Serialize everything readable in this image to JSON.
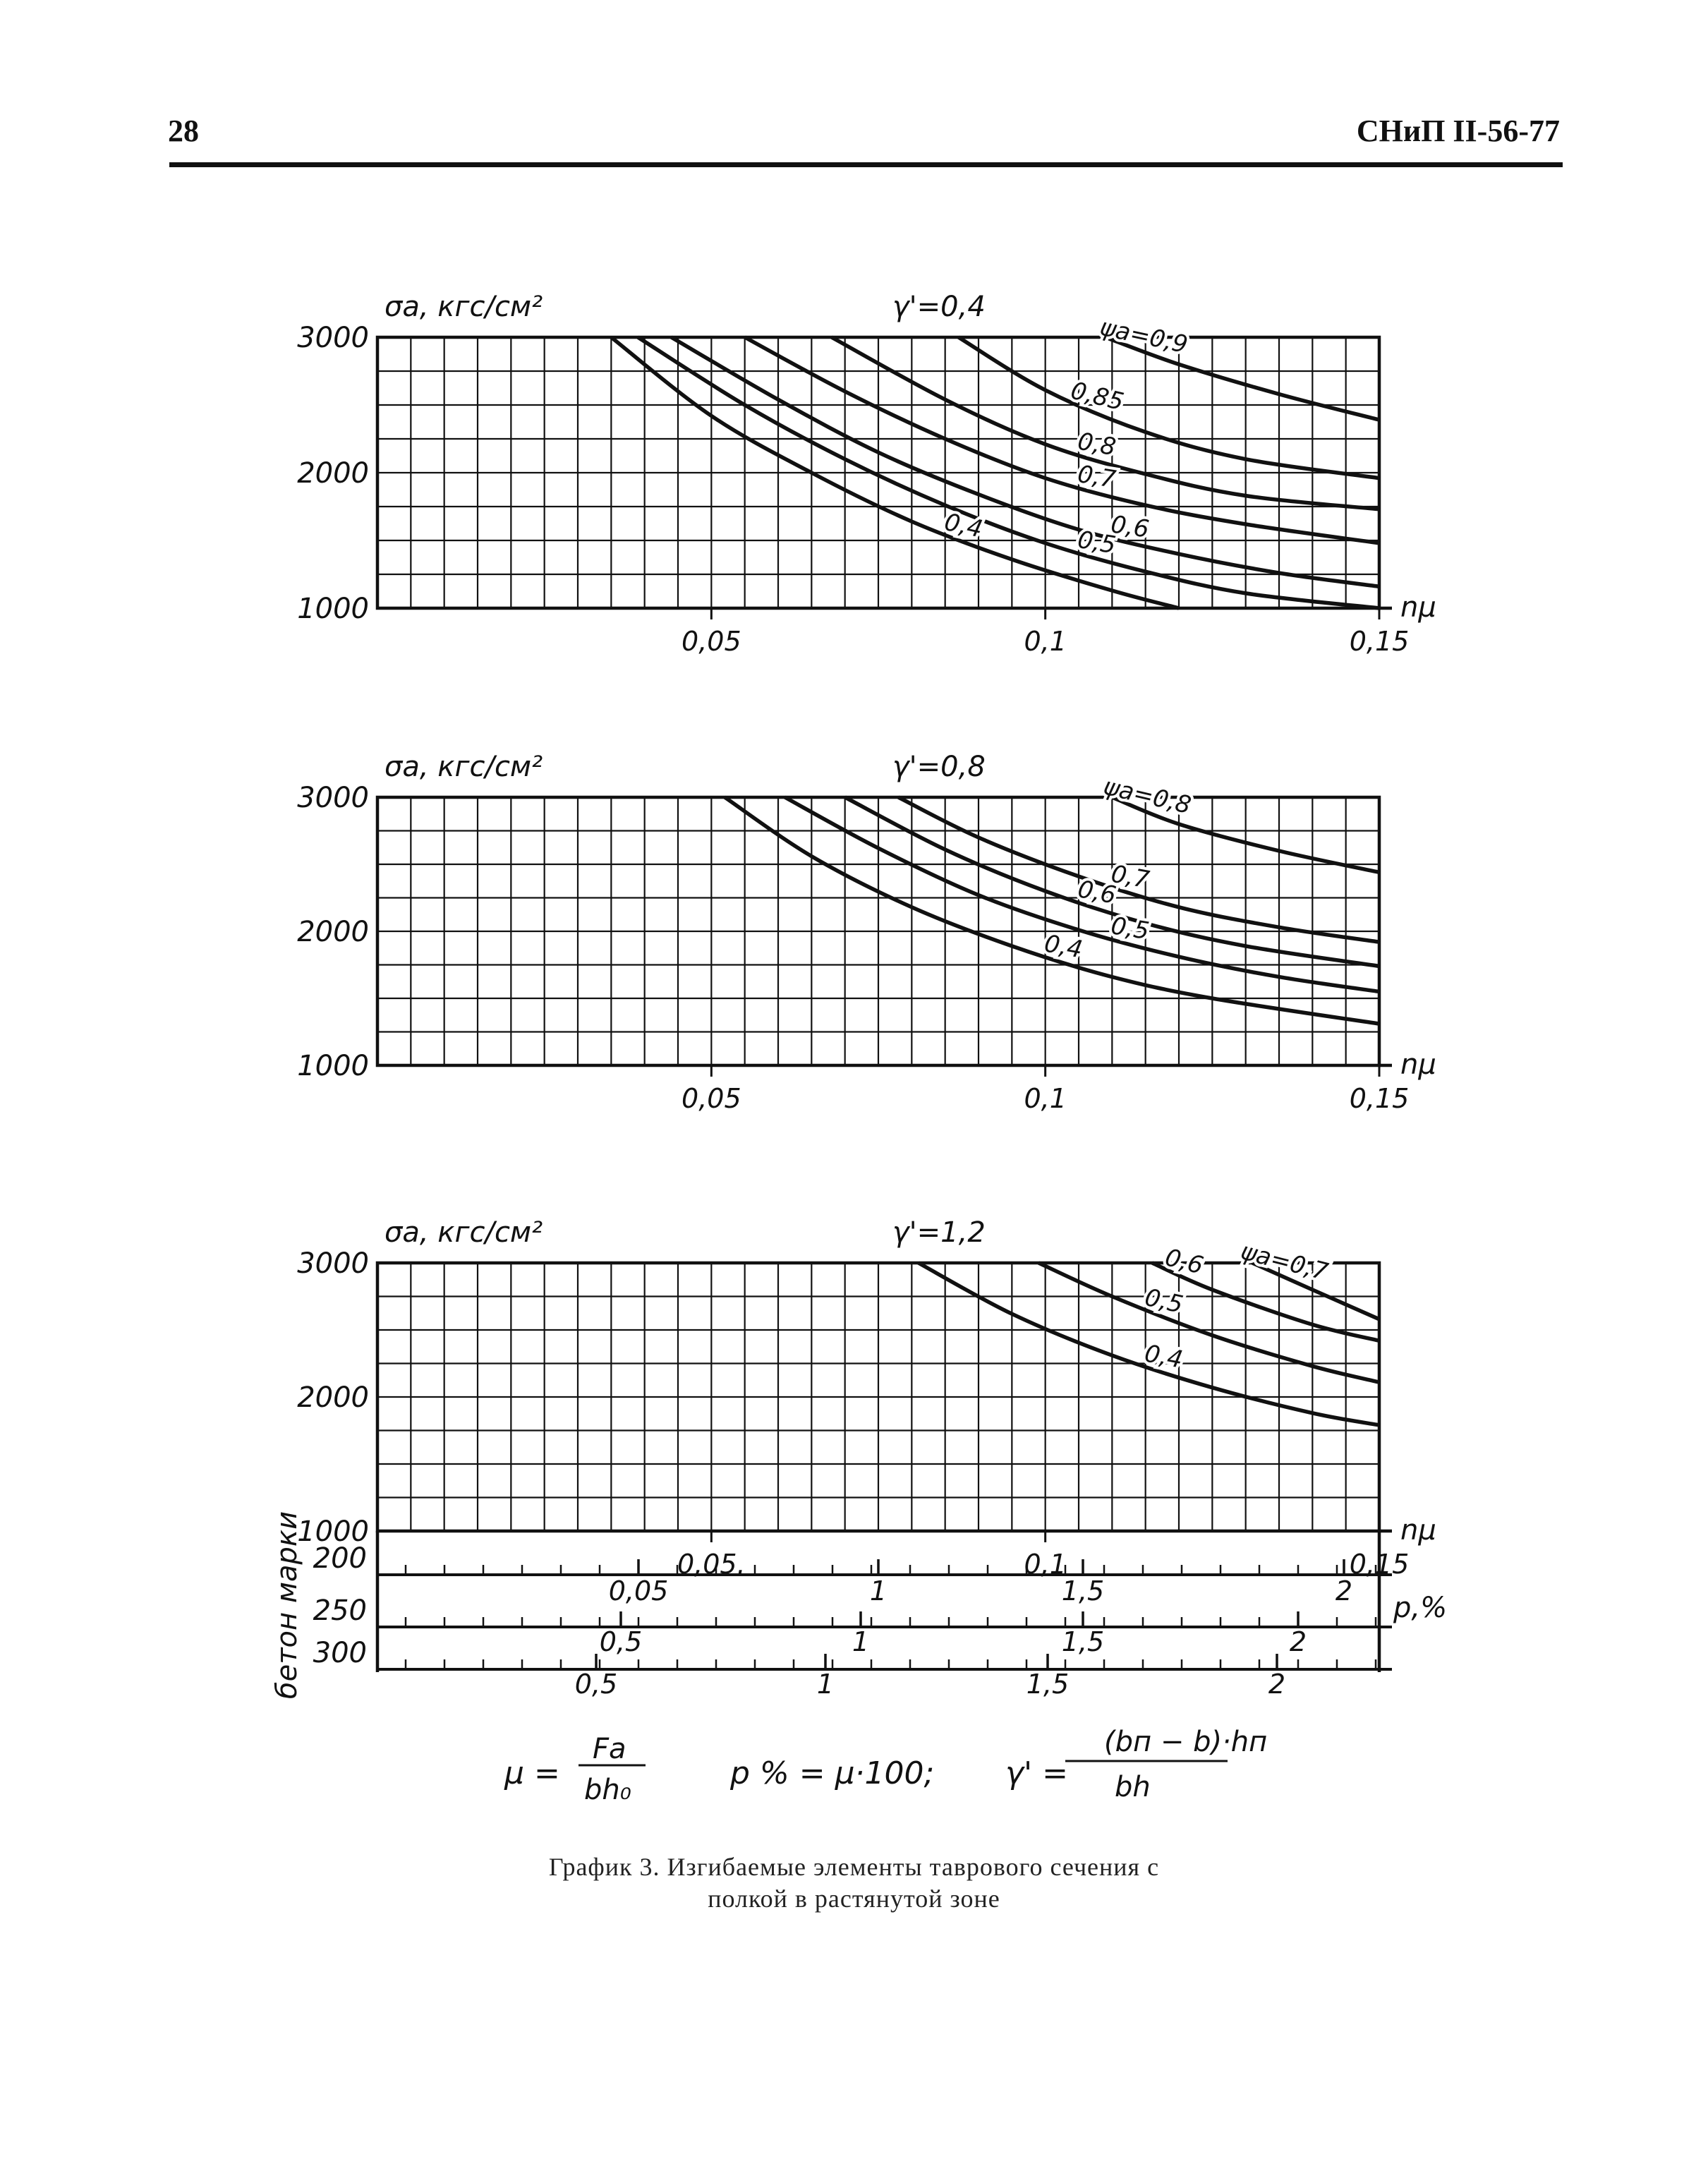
{
  "header": {
    "page_number": "28",
    "doc_code": "СНиП II-56-77"
  },
  "chart_data": [
    {
      "type": "line",
      "title": "γ'=0,4",
      "ylabel": "σа, кгс/см²",
      "xlabel": "nμ",
      "ylim": [
        1000,
        3000
      ],
      "xlim": [
        0,
        0.15
      ],
      "y_ticks": [
        "3000",
        "2000",
        "1000"
      ],
      "x_ticks": [
        "0,05",
        "0,1",
        "0,15"
      ],
      "legend_prefix": "ψа=",
      "grid": true,
      "series": [
        {
          "name": "0,4",
          "x": [
            0.035,
            0.05,
            0.065,
            0.08,
            0.095,
            0.11,
            0.12
          ],
          "y": [
            3000,
            2420,
            2000,
            1640,
            1360,
            1130,
            1000
          ]
        },
        {
          "name": "0,5",
          "x": [
            0.039,
            0.055,
            0.07,
            0.085,
            0.1,
            0.115,
            0.13,
            0.15
          ],
          "y": [
            3000,
            2500,
            2100,
            1760,
            1480,
            1270,
            1110,
            1000
          ]
        },
        {
          "name": "0,6",
          "x": [
            0.044,
            0.06,
            0.075,
            0.09,
            0.105,
            0.12,
            0.135,
            0.15
          ],
          "y": [
            3000,
            2540,
            2150,
            1840,
            1580,
            1400,
            1260,
            1160
          ]
        },
        {
          "name": "0,7",
          "x": [
            0.055,
            0.07,
            0.085,
            0.1,
            0.115,
            0.13,
            0.15
          ],
          "y": [
            3000,
            2600,
            2250,
            1960,
            1760,
            1620,
            1480
          ]
        },
        {
          "name": "0,8",
          "x": [
            0.068,
            0.085,
            0.1,
            0.115,
            0.13,
            0.15
          ],
          "y": [
            3000,
            2540,
            2210,
            1990,
            1830,
            1730
          ]
        },
        {
          "name": "0,85",
          "x": [
            0.087,
            0.1,
            0.115,
            0.13,
            0.15
          ],
          "y": [
            3000,
            2610,
            2300,
            2100,
            1960
          ]
        },
        {
          "name": "0,9",
          "x": [
            0.109,
            0.12,
            0.135,
            0.15
          ],
          "y": [
            3000,
            2800,
            2580,
            2390
          ]
        }
      ]
    },
    {
      "type": "line",
      "title": "γ'=0,8",
      "ylabel": "σа, кгс/см²",
      "xlabel": "nμ",
      "ylim": [
        1000,
        3000
      ],
      "xlim": [
        0,
        0.15
      ],
      "y_ticks": [
        "3000",
        "2000",
        "1000"
      ],
      "x_ticks": [
        "0,05",
        "0,1",
        "0,15"
      ],
      "legend_prefix": "ψа=",
      "grid": true,
      "series": [
        {
          "name": "0,4",
          "x": [
            0.052,
            0.065,
            0.08,
            0.095,
            0.11,
            0.125,
            0.15
          ],
          "y": [
            3000,
            2560,
            2180,
            1890,
            1660,
            1500,
            1310
          ]
        },
        {
          "name": "0,5",
          "x": [
            0.061,
            0.075,
            0.09,
            0.105,
            0.12,
            0.135,
            0.15
          ],
          "y": [
            3000,
            2620,
            2270,
            2010,
            1810,
            1660,
            1550
          ]
        },
        {
          "name": "0,6",
          "x": [
            0.07,
            0.085,
            0.1,
            0.115,
            0.13,
            0.15
          ],
          "y": [
            3000,
            2610,
            2300,
            2060,
            1890,
            1740
          ]
        },
        {
          "name": "0,7",
          "x": [
            0.078,
            0.09,
            0.105,
            0.12,
            0.135,
            0.15
          ],
          "y": [
            3000,
            2700,
            2410,
            2180,
            2030,
            1920
          ]
        },
        {
          "name": "0,8",
          "x": [
            0.11,
            0.12,
            0.135,
            0.15
          ],
          "y": [
            3000,
            2800,
            2600,
            2440
          ]
        }
      ]
    },
    {
      "type": "line",
      "title": "γ'=1,2",
      "ylabel": "σа, кгс/см²",
      "xlabel": "nμ",
      "ylim": [
        1000,
        3000
      ],
      "xlim": [
        0,
        0.15
      ],
      "y_ticks": [
        "3000",
        "2000",
        "1000"
      ],
      "x_ticks": [
        "0,05.",
        "0,1",
        "0,15"
      ],
      "legend_prefix": "ψа=",
      "grid": true,
      "series": [
        {
          "name": "0,4",
          "x": [
            0.081,
            0.095,
            0.11,
            0.125,
            0.14,
            0.15
          ],
          "y": [
            3000,
            2620,
            2310,
            2070,
            1880,
            1790
          ]
        },
        {
          "name": "0,5",
          "x": [
            0.099,
            0.11,
            0.125,
            0.14,
            0.15
          ],
          "y": [
            3000,
            2750,
            2460,
            2230,
            2110
          ]
        },
        {
          "name": "0,6",
          "x": [
            0.116,
            0.125,
            0.14,
            0.15
          ],
          "y": [
            3000,
            2800,
            2540,
            2420
          ]
        },
        {
          "name": "0,7",
          "x": [
            0.131,
            0.14,
            0.15
          ],
          "y": [
            3000,
            2800,
            2580
          ]
        }
      ]
    }
  ],
  "concrete_scales": {
    "axis_title": "бетон марки",
    "p_label": "p,%",
    "rows": [
      {
        "grade": "200",
        "ticks": [
          "0,05",
          "1",
          "1,5",
          "2"
        ]
      },
      {
        "grade": "250",
        "ticks": [
          "0,5",
          "1",
          "1,5",
          "2"
        ]
      },
      {
        "grade": "300",
        "ticks": [
          "0,5",
          "1",
          "1,5",
          "2"
        ]
      }
    ]
  },
  "formulas": {
    "mu": "μ = Fa / (bh₀)",
    "mu_lhs": "μ =",
    "mu_num": "Fa",
    "mu_den": "bh₀",
    "p": "p % = μ·100;",
    "gamma_lhs": "γ' =",
    "gamma_num": "(bп − b)·hп",
    "gamma_den": "bh"
  },
  "caption": {
    "line1": "График 3. Изгибаемые элементы таврового сечения с",
    "line2": "полкой в растянутой зоне"
  }
}
